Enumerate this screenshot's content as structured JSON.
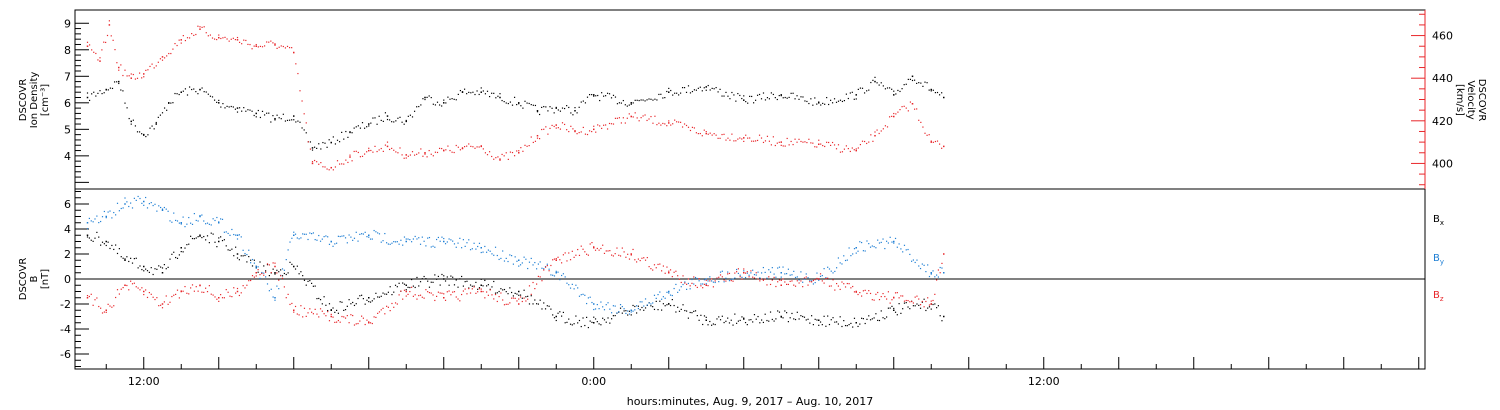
{
  "chart_data": [
    {
      "type": "scatter",
      "panel": "plasma",
      "y_label_left": [
        "DSCOVR",
        "Ion Density",
        "[cm⁻³]"
      ],
      "y_label_right": [
        "DSCOVR",
        "Velocity",
        "[km/s]"
      ],
      "ylim_left": [
        2.75,
        9.5
      ],
      "ylim_right": [
        388,
        472
      ],
      "yticks_left": [
        "4",
        "5",
        "6",
        "7",
        "8",
        "9"
      ],
      "yticks_right": [
        "400",
        "420",
        "440",
        "460"
      ],
      "right_axis_color": "#e8262a",
      "series": [
        {
          "color": "#000000",
          "axis": "left",
          "x": [
            "2017-08-09 10:30",
            "2017-08-09 11:00",
            "2017-08-09 11:20",
            "2017-08-09 11:40",
            "2017-08-09 12:00",
            "2017-08-09 12:20",
            "2017-08-09 12:40",
            "2017-08-09 13:00",
            "2017-08-09 13:30",
            "2017-08-09 14:00",
            "2017-08-09 14:30",
            "2017-08-09 15:00",
            "2017-08-09 15:30",
            "2017-08-09 16:00",
            "2017-08-09 16:30",
            "2017-08-09 17:00",
            "2017-08-09 17:30",
            "2017-08-09 18:00",
            "2017-08-09 18:30",
            "2017-08-09 19:00",
            "2017-08-09 19:30",
            "2017-08-09 20:00",
            "2017-08-09 20:30",
            "2017-08-09 21:00",
            "2017-08-09 21:30",
            "2017-08-09 22:00",
            "2017-08-09 22:30",
            "2017-08-09 23:00",
            "2017-08-09 23:30",
            "2017-08-10 00:00",
            "2017-08-10 01:00",
            "2017-08-10 02:00",
            "2017-08-10 03:00",
            "2017-08-10 04:00",
            "2017-08-10 05:00",
            "2017-08-10 06:00",
            "2017-08-10 07:00",
            "2017-08-10 07:30",
            "2017-08-10 08:00",
            "2017-08-10 08:30",
            "2017-08-10 09:00",
            "2017-08-10 09:20"
          ],
          "y": [
            6.2,
            6.5,
            6.8,
            5.3,
            4.8,
            5.2,
            6.0,
            6.4,
            6.5,
            6.0,
            5.8,
            5.6,
            5.4,
            5.5,
            4.3,
            4.5,
            4.9,
            5.2,
            5.5,
            5.3,
            6.2,
            6.0,
            6.4,
            6.4,
            6.2,
            6.0,
            5.7,
            5.8,
            5.7,
            6.3,
            6.0,
            6.4,
            6.6,
            6.1,
            6.3,
            6.0,
            6.3,
            6.8,
            6.3,
            7.0,
            6.5,
            6.2
          ]
        },
        {
          "color": "#e8262a",
          "axis": "right",
          "x": [
            "2017-08-09 10:30",
            "2017-08-09 10:50",
            "2017-08-09 11:05",
            "2017-08-09 11:20",
            "2017-08-09 11:40",
            "2017-08-09 12:00",
            "2017-08-09 12:30",
            "2017-08-09 13:00",
            "2017-08-09 13:30",
            "2017-08-09 14:00",
            "2017-08-09 14:30",
            "2017-08-09 15:00",
            "2017-08-09 15:30",
            "2017-08-09 16:00",
            "2017-08-09 16:30",
            "2017-08-09 17:00",
            "2017-08-09 17:30",
            "2017-08-09 18:00",
            "2017-08-09 18:30",
            "2017-08-09 19:00",
            "2017-08-09 19:30",
            "2017-08-09 20:00",
            "2017-08-09 20:30",
            "2017-08-09 21:00",
            "2017-08-09 21:30",
            "2017-08-09 22:00",
            "2017-08-09 22:30",
            "2017-08-09 23:00",
            "2017-08-09 23:30",
            "2017-08-10 00:00",
            "2017-08-10 01:00",
            "2017-08-10 02:00",
            "2017-08-10 03:00",
            "2017-08-10 04:00",
            "2017-08-10 05:00",
            "2017-08-10 06:00",
            "2017-08-10 07:00",
            "2017-08-10 07:30",
            "2017-08-10 08:00",
            "2017-08-10 08:30",
            "2017-08-10 09:00",
            "2017-08-10 09:20"
          ],
          "y": [
            455,
            448,
            465,
            445,
            440,
            442,
            450,
            458,
            463,
            459,
            458,
            455,
            456,
            452,
            400,
            398,
            403,
            406,
            408,
            404,
            405,
            406,
            407,
            408,
            402,
            405,
            413,
            418,
            415,
            416,
            422,
            419,
            414,
            412,
            410,
            409,
            406,
            413,
            422,
            428,
            410,
            408
          ]
        }
      ]
    },
    {
      "type": "scatter",
      "panel": "magnetic-field",
      "y_label_left": [
        "DSCOVR",
        "B",
        "[nT]"
      ],
      "ylim": [
        -7.2,
        7.2
      ],
      "yticks": [
        "-6",
        "-4",
        "-2",
        "0",
        "2",
        "4",
        "6"
      ],
      "zero_line": true,
      "legend": [
        {
          "label": "B",
          "sub": "x",
          "color": "#000000"
        },
        {
          "label": "B",
          "sub": "y",
          "color": "#1f7fd4"
        },
        {
          "label": "B",
          "sub": "z",
          "color": "#e8262a"
        }
      ],
      "series": [
        {
          "color": "#000000",
          "x": [
            "2017-08-09 10:30",
            "2017-08-09 11:00",
            "2017-08-09 11:30",
            "2017-08-09 12:00",
            "2017-08-09 12:30",
            "2017-08-09 13:00",
            "2017-08-09 13:30",
            "2017-08-09 14:00",
            "2017-08-09 14:30",
            "2017-08-09 15:00",
            "2017-08-09 15:30",
            "2017-08-09 16:00",
            "2017-08-09 17:00",
            "2017-08-09 18:00",
            "2017-08-09 19:00",
            "2017-08-09 20:00",
            "2017-08-09 21:00",
            "2017-08-09 22:00",
            "2017-08-09 23:00",
            "2017-08-10 00:00",
            "2017-08-10 01:00",
            "2017-08-10 02:00",
            "2017-08-10 03:00",
            "2017-08-10 04:00",
            "2017-08-10 05:00",
            "2017-08-10 06:00",
            "2017-08-10 07:00",
            "2017-08-10 08:00",
            "2017-08-10 09:00",
            "2017-08-10 09:20"
          ],
          "y": [
            3.5,
            3.0,
            1.5,
            1.0,
            0.5,
            2.5,
            3.5,
            3.0,
            2.0,
            1.0,
            0.5,
            1.0,
            -2.5,
            -1.5,
            -0.5,
            0.0,
            -0.5,
            -1.0,
            -3.0,
            -3.5,
            -2.5,
            -2.0,
            -3.3,
            -3.2,
            -3.0,
            -3.3,
            -3.5,
            -2.5,
            -2.0,
            -3.0
          ]
        },
        {
          "color": "#1f7fd4",
          "x": [
            "2017-08-09 10:30",
            "2017-08-09 11:00",
            "2017-08-09 11:30",
            "2017-08-09 12:00",
            "2017-08-09 12:30",
            "2017-08-09 13:00",
            "2017-08-09 13:30",
            "2017-08-09 14:00",
            "2017-08-09 14:30",
            "2017-08-09 15:00",
            "2017-08-09 15:30",
            "2017-08-09 16:00",
            "2017-08-09 17:00",
            "2017-08-09 18:00",
            "2017-08-09 19:00",
            "2017-08-09 20:00",
            "2017-08-09 21:00",
            "2017-08-09 22:00",
            "2017-08-09 23:00",
            "2017-08-10 00:00",
            "2017-08-10 01:00",
            "2017-08-10 02:00",
            "2017-08-10 03:00",
            "2017-08-10 04:00",
            "2017-08-10 05:00",
            "2017-08-10 06:00",
            "2017-08-10 07:00",
            "2017-08-10 08:00",
            "2017-08-10 09:00",
            "2017-08-10 09:20"
          ],
          "y": [
            4.5,
            5.0,
            6.0,
            6.2,
            5.5,
            4.5,
            5.0,
            4.5,
            3.5,
            1.0,
            -1.5,
            3.5,
            3.0,
            3.5,
            3.0,
            3.0,
            2.5,
            1.5,
            0.5,
            -2.0,
            -2.5,
            -1.0,
            0.0,
            0.5,
            0.5,
            0.0,
            2.5,
            3.0,
            0.5,
            0.5
          ]
        },
        {
          "color": "#e8262a",
          "x": [
            "2017-08-09 10:30",
            "2017-08-09 11:00",
            "2017-08-09 11:30",
            "2017-08-09 12:00",
            "2017-08-09 12:30",
            "2017-08-09 13:00",
            "2017-08-09 13:30",
            "2017-08-09 14:00",
            "2017-08-09 14:30",
            "2017-08-09 15:00",
            "2017-08-09 15:30",
            "2017-08-09 16:00",
            "2017-08-09 17:00",
            "2017-08-09 18:00",
            "2017-08-09 19:00",
            "2017-08-09 20:00",
            "2017-08-09 21:00",
            "2017-08-09 22:00",
            "2017-08-09 23:00",
            "2017-08-10 00:00",
            "2017-08-10 01:00",
            "2017-08-10 02:00",
            "2017-08-10 03:00",
            "2017-08-10 04:00",
            "2017-08-10 05:00",
            "2017-08-10 06:00",
            "2017-08-10 07:00",
            "2017-08-10 08:00",
            "2017-08-10 09:00",
            "2017-08-10 09:20"
          ],
          "y": [
            -1.5,
            -2.5,
            -0.5,
            -1.0,
            -2.0,
            -1.0,
            -0.5,
            -1.5,
            -1.0,
            0.5,
            1.0,
            -2.5,
            -3.0,
            -3.5,
            -1.0,
            -1.5,
            -1.0,
            -2.0,
            1.5,
            2.5,
            2.0,
            0.5,
            -0.5,
            0.5,
            -0.5,
            0.0,
            -1.0,
            -1.5,
            -2.0,
            2.0
          ]
        }
      ]
    }
  ],
  "x_axis": {
    "range": [
      "2017-08-09 10:10",
      "2017-08-10 22:10"
    ],
    "tick_labels": [
      {
        "label": "12:00",
        "at": "2017-08-09 12:00"
      },
      {
        "label": "0:00",
        "at": "2017-08-10 00:00"
      },
      {
        "label": "12:00",
        "at": "2017-08-10 12:00"
      }
    ],
    "title": "hours:minutes,  Aug.  9, 2017 – Aug. 10, 2017"
  }
}
